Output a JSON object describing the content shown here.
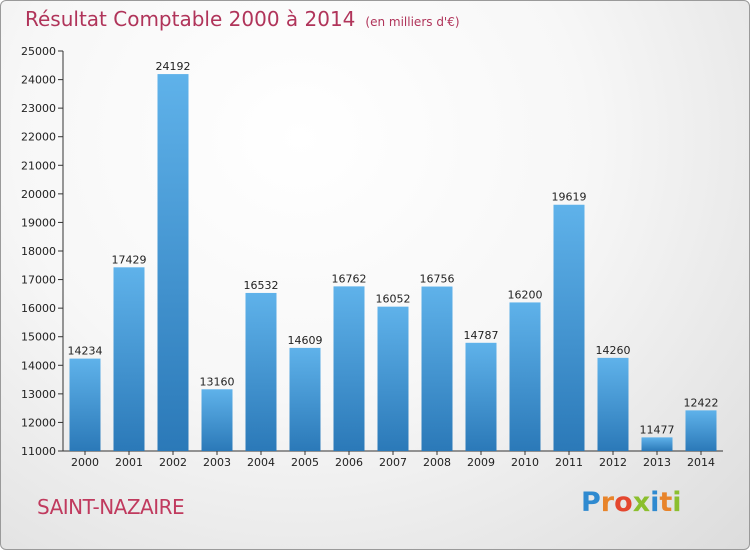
{
  "title": {
    "main": "Résultat Comptable 2000 à 2014",
    "sub": "(en milliers d'€)"
  },
  "place": "SAINT-NAZAIRE",
  "logo": "Proxiti",
  "colors": {
    "title": "#b0345a",
    "bar_top": "#5fb2ea",
    "bar_bottom": "#2b79b8"
  },
  "chart_data": {
    "type": "bar",
    "title": "Résultat Comptable 2000 à 2014",
    "subtitle": "(en milliers d'€)",
    "xlabel": "",
    "ylabel": "",
    "ylim": [
      11000,
      25000
    ],
    "yticks": [
      11000,
      12000,
      13000,
      14000,
      15000,
      16000,
      17000,
      18000,
      19000,
      20000,
      21000,
      22000,
      23000,
      24000,
      25000
    ],
    "grid": false,
    "legend": "none",
    "categories": [
      "2000",
      "2001",
      "2002",
      "2003",
      "2004",
      "2005",
      "2006",
      "2007",
      "2008",
      "2009",
      "2010",
      "2011",
      "2012",
      "2013",
      "2014"
    ],
    "values": [
      14234,
      17429,
      24192,
      13160,
      16532,
      14609,
      16762,
      16052,
      16756,
      14787,
      16200,
      19619,
      14260,
      11477,
      12422
    ]
  }
}
